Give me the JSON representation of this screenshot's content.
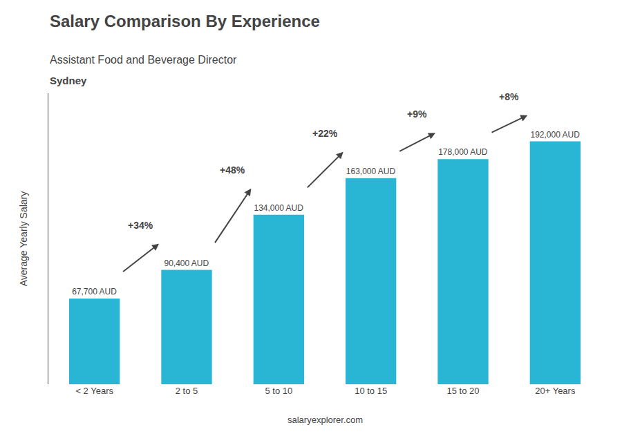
{
  "chart_data": {
    "type": "bar",
    "title": "Salary Comparison By Experience",
    "subtitle": "Assistant Food and Beverage Director",
    "ylabel": "Average Yearly Salary",
    "categories": [
      "< 2 Years",
      "2 to 5",
      "5 to 10",
      "10 to 15",
      "15 to 20",
      "20+ Years"
    ],
    "values": [
      67700,
      90400,
      134000,
      163000,
      178000,
      192000
    ],
    "value_labels": [
      "67,700 AUD",
      "90,400 AUD",
      "134,000 AUD",
      "163,000 AUD",
      "178,000 AUD",
      "192,000 AUD"
    ],
    "data_labels": true,
    "color": "#29b6d4",
    "ylim": [
      0,
      230000
    ],
    "grid": false,
    "tick_labels": "x",
    "annotations": [
      {
        "text": "Sydney"
      },
      {
        "text": "+34%",
        "from": "< 2 Years",
        "to": "2 to 5"
      },
      {
        "text": "+48%",
        "from": "2 to 5",
        "to": "5 to 10"
      },
      {
        "text": "+22%",
        "from": "5 to 10",
        "to": "10 to 15"
      },
      {
        "text": "+9%",
        "from": "10 to 15",
        "to": "15 to 20"
      },
      {
        "text": "+8%",
        "from": "15 to 20",
        "to": "20+ Years"
      },
      {
        "text": "salaryexplorer.com"
      }
    ]
  }
}
